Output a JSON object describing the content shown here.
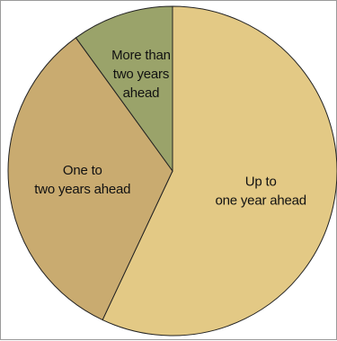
{
  "chart_data": {
    "type": "pie",
    "slices": [
      {
        "label": "Up to one year ahead",
        "label_lines": [
          "Up to",
          "one year ahead"
        ],
        "value": 57,
        "color": "#e3c985"
      },
      {
        "label": "One to two years ahead",
        "label_lines": [
          "One to",
          "two years ahead"
        ],
        "value": 33,
        "color": "#c9ab70"
      },
      {
        "label": "More than two years ahead",
        "label_lines": [
          "More than",
          "two years",
          "ahead"
        ],
        "value": 10,
        "color": "#9aa36a"
      }
    ],
    "title": "",
    "legend": "none"
  }
}
